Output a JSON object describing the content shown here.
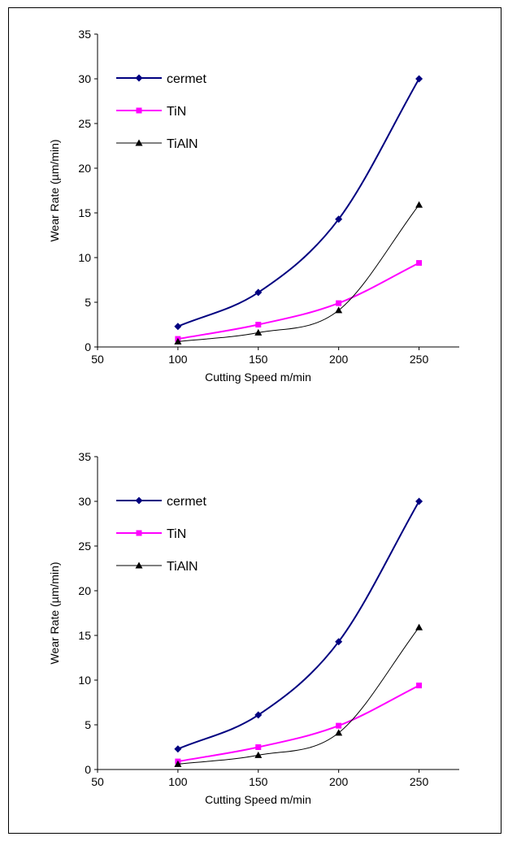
{
  "chart_data": [
    {
      "type": "line",
      "title": "",
      "xlabel": "Cutting Speed m/min",
      "ylabel": "Wear Rate (µm/min)",
      "xlim": [
        50,
        275
      ],
      "ylim": [
        0,
        35
      ],
      "xticks": [
        50,
        100,
        150,
        200,
        250
      ],
      "yticks": [
        0,
        5,
        10,
        15,
        20,
        25,
        30,
        35
      ],
      "grid": false,
      "legend_position": "top-left",
      "series": [
        {
          "name": "cermet",
          "color": "#000080",
          "marker": "diamond",
          "x": [
            100,
            150,
            200,
            250
          ],
          "y": [
            2.3,
            6.1,
            14.3,
            30
          ]
        },
        {
          "name": "TiN",
          "color": "#ff00ff",
          "marker": "square",
          "x": [
            100,
            150,
            200,
            250
          ],
          "y": [
            0.9,
            2.5,
            4.9,
            9.4
          ]
        },
        {
          "name": "TiAlN",
          "color": "#000000",
          "marker": "triangle",
          "x": [
            100,
            150,
            200,
            250
          ],
          "y": [
            0.6,
            1.6,
            4.1,
            15.9
          ]
        }
      ]
    },
    {
      "type": "line",
      "title": "",
      "xlabel": "Cutting Speed m/min",
      "ylabel": "Wear Rate (µm/min)",
      "xlim": [
        50,
        275
      ],
      "ylim": [
        0,
        35
      ],
      "xticks": [
        50,
        100,
        150,
        200,
        250
      ],
      "yticks": [
        0,
        5,
        10,
        15,
        20,
        25,
        30,
        35
      ],
      "grid": false,
      "legend_position": "top-left",
      "series": [
        {
          "name": "cermet",
          "color": "#000080",
          "marker": "diamond",
          "x": [
            100,
            150,
            200,
            250
          ],
          "y": [
            2.3,
            6.1,
            14.3,
            30
          ]
        },
        {
          "name": "TiN",
          "color": "#ff00ff",
          "marker": "square",
          "x": [
            100,
            150,
            200,
            250
          ],
          "y": [
            0.9,
            2.5,
            4.9,
            9.4
          ]
        },
        {
          "name": "TiAlN",
          "color": "#000000",
          "marker": "triangle",
          "x": [
            100,
            150,
            200,
            250
          ],
          "y": [
            0.6,
            1.6,
            4.1,
            15.9
          ]
        }
      ]
    }
  ]
}
